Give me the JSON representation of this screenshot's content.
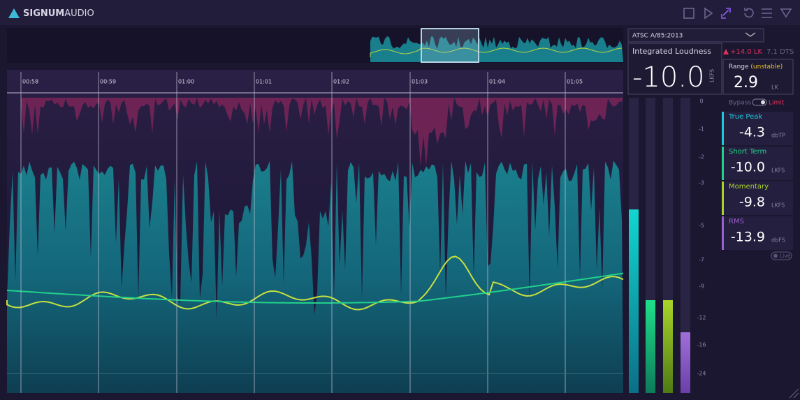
{
  "header": {
    "brand_bold": "SIGNUM",
    "brand_light": "AUDIO"
  },
  "timeline": {
    "labels": [
      "00:58",
      "00:59",
      "01:00",
      "01:01",
      "01:02",
      "01:03",
      "01:04",
      "01:05"
    ]
  },
  "scale": {
    "labels": [
      "0",
      "-1",
      "-2",
      "-3",
      "-5",
      "-7",
      "-9",
      "-12",
      "-16",
      "-24"
    ]
  },
  "panel": {
    "standard": "ATSC A/85:2013",
    "integrated": {
      "label": "Integrated Loudness",
      "delta": "+14.0 LK",
      "format": "7.1 DTS",
      "value": "-10.0",
      "unit": "LKFS"
    },
    "range": {
      "label": "Range",
      "status": "(unstable)",
      "value": "2.9",
      "unit": "LK"
    },
    "bypass": "Bypass",
    "limit": "Limit",
    "meters": [
      {
        "label": "True Peak",
        "value": "-4.3",
        "unit": "dbTP"
      },
      {
        "label": "Short Term",
        "value": "-10.0",
        "unit": "LKFS"
      },
      {
        "label": "Momentary",
        "value": "-9.8",
        "unit": "LKFS"
      },
      {
        "label": "RMS",
        "value": "-13.9",
        "unit": "dbFS"
      }
    ],
    "live": "Live"
  }
}
